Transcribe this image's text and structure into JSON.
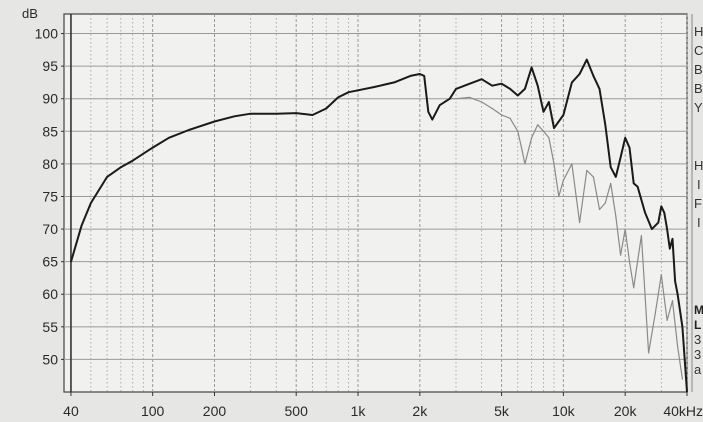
{
  "chart_data": {
    "type": "line",
    "title": "",
    "xlabel": "",
    "ylabel": "",
    "x_scale": "log",
    "xlim": [
      37,
      40000
    ],
    "ylim": [
      45,
      103
    ],
    "y_unit": "dB",
    "x_unit": "Hz",
    "y_ticks": [
      100,
      95,
      90,
      85,
      80,
      75,
      70,
      65,
      60,
      55,
      50
    ],
    "x_ticks": [
      {
        "value": 40,
        "label": "40"
      },
      {
        "value": 100,
        "label": "100"
      },
      {
        "value": 200,
        "label": "200"
      },
      {
        "value": 500,
        "label": "500"
      },
      {
        "value": 1000,
        "label": "1k"
      },
      {
        "value": 2000,
        "label": "2k"
      },
      {
        "value": 5000,
        "label": "5k"
      },
      {
        "value": 10000,
        "label": "10k"
      },
      {
        "value": 20000,
        "label": "20k"
      },
      {
        "value": 40000,
        "label": "40kHz"
      }
    ],
    "grid": true,
    "series": [
      {
        "color": "#1a1a1a",
        "x": [
          40,
          45,
          50,
          60,
          70,
          80,
          100,
          120,
          150,
          200,
          250,
          300,
          400,
          500,
          600,
          700,
          800,
          900,
          1000,
          1200,
          1500,
          1800,
          2000,
          2100,
          2200,
          2300,
          2500,
          2800,
          3000,
          3500,
          4000,
          4500,
          5000,
          5500,
          6000,
          6500,
          7000,
          7500,
          8000,
          8500,
          9000,
          10000,
          11000,
          12000,
          13000,
          14000,
          14500,
          15000,
          16000,
          17000,
          18000,
          19000,
          20000,
          21000,
          22000,
          23000,
          25000,
          27000,
          29000,
          30000,
          31000,
          32000,
          33000,
          34000,
          35000,
          36000,
          38000,
          40000
        ],
        "values": [
          65,
          70.5,
          74,
          78,
          79.5,
          80.5,
          82.5,
          84,
          85.2,
          86.5,
          87.3,
          87.7,
          87.7,
          87.8,
          87.5,
          88.5,
          90.2,
          91,
          91.3,
          91.8,
          92.5,
          93.5,
          93.8,
          93.5,
          88,
          86.8,
          89,
          90,
          91.5,
          92.3,
          93,
          92,
          92.3,
          91.5,
          90.5,
          91.5,
          94.8,
          92,
          88,
          89.5,
          85.5,
          87.5,
          92.5,
          93.8,
          96,
          93.5,
          92.5,
          91.5,
          86,
          79.5,
          78,
          81,
          84,
          82.5,
          77,
          76.5,
          72.5,
          70,
          71,
          73.5,
          72.5,
          70,
          67,
          68.5,
          62,
          60,
          55,
          45
        ]
      },
      {
        "color": "#8a8a8a",
        "x": [
          2300,
          2500,
          2800,
          3000,
          3500,
          4000,
          4500,
          5000,
          5500,
          6000,
          6300,
          6500,
          7000,
          7500,
          8000,
          8500,
          9000,
          9500,
          10000,
          11000,
          12000,
          13000,
          14000,
          15000,
          16000,
          17000,
          18000,
          19000,
          20000,
          21000,
          22000,
          24000,
          26000,
          28000,
          30000,
          32000,
          34000,
          36000,
          38000
        ],
        "values": [
          86.8,
          89,
          90,
          90,
          90.2,
          89.5,
          88.5,
          87.5,
          87,
          85,
          82,
          80,
          84,
          86,
          85,
          84,
          80,
          75,
          77.5,
          80,
          71,
          79,
          78,
          73,
          74,
          77,
          72,
          66,
          70,
          65,
          61,
          69,
          51,
          57,
          63,
          56,
          59,
          52,
          47
        ]
      }
    ]
  },
  "legend_side": {
    "upper": [
      "H",
      "C",
      "B",
      "B",
      "Y"
    ],
    "middle": [
      "H",
      "I",
      "F",
      "I"
    ],
    "bottom": [
      "M",
      "L",
      "3",
      "3",
      "a"
    ]
  }
}
